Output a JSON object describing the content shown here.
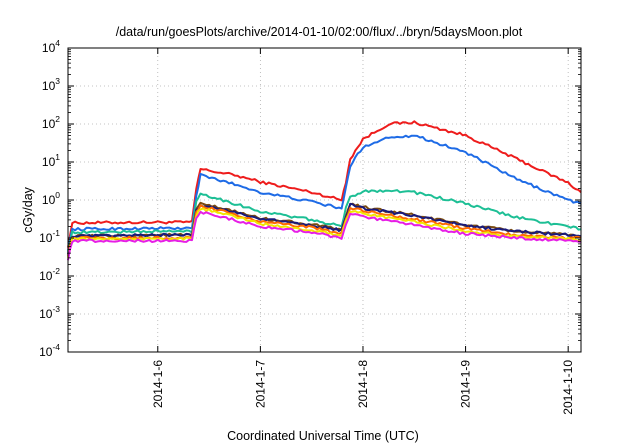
{
  "chart_data": {
    "type": "line",
    "title": "/data/run/goesPlots/archive/2014-01-10/02:00/flux/../bryn/5daysMoon.plot",
    "xlabel": "Coordinated Universal Time (UTC)",
    "ylabel": "cGy/day",
    "yscale": "log",
    "ylim": [
      0.0001,
      10000
    ],
    "xlim": [
      "2014-01-05 03:00",
      "2014-01-10 03:00"
    ],
    "grid": true,
    "x_ticks": [
      "2014-1-6",
      "2014-1-7",
      "2014-1-8",
      "2014-1-9",
      "2014-1-10"
    ],
    "y_ticks": [
      {
        "base": "10",
        "exp": "-4",
        "value": 0.0001
      },
      {
        "base": "10",
        "exp": "-3",
        "value": 0.001
      },
      {
        "base": "10",
        "exp": "-2",
        "value": 0.01
      },
      {
        "base": "10",
        "exp": "-1",
        "value": 0.1
      },
      {
        "base": "10",
        "exp": "0",
        "value": 1
      },
      {
        "base": "10",
        "exp": "1",
        "value": 10
      },
      {
        "base": "10",
        "exp": "2",
        "value": 100
      },
      {
        "base": "10",
        "exp": "3",
        "value": 1000
      },
      {
        "base": "10",
        "exp": "4",
        "value": 10000
      }
    ],
    "x_dates": [
      "2014-01-05 03:00",
      "2014-01-05 04:00",
      "2014-01-06 00:00",
      "2014-01-06 08:00",
      "2014-01-06 09:00",
      "2014-01-06 10:00",
      "2014-01-06 18:00",
      "2014-01-07 00:00",
      "2014-01-07 12:00",
      "2014-01-07 19:00",
      "2014-01-07 20:00",
      "2014-01-07 21:00",
      "2014-01-08 00:00",
      "2014-01-08 06:00",
      "2014-01-08 12:00",
      "2014-01-09 00:00",
      "2014-01-09 12:00",
      "2014-01-10 00:00",
      "2014-01-10 03:00"
    ],
    "series": [
      {
        "color": "#ee1c1c",
        "values": [
          0.06,
          0.25,
          0.26,
          0.26,
          2.0,
          6.5,
          4.5,
          3.0,
          1.6,
          1.0,
          3.0,
          12,
          40,
          100,
          110,
          50,
          12,
          2.8,
          1.6
        ]
      },
      {
        "color": "#1e6be6",
        "values": [
          0.05,
          0.17,
          0.18,
          0.18,
          1.3,
          4.5,
          2.6,
          1.6,
          0.9,
          0.6,
          2.0,
          8,
          25,
          45,
          50,
          18,
          3.5,
          1.0,
          0.8
        ]
      },
      {
        "color": "#1dbf95",
        "values": [
          0.045,
          0.14,
          0.15,
          0.15,
          0.9,
          1.5,
          0.8,
          0.5,
          0.3,
          0.2,
          0.6,
          1.2,
          1.7,
          1.8,
          1.6,
          0.8,
          0.35,
          0.2,
          0.17
        ]
      },
      {
        "color": "#7a4a10",
        "values": [
          0.04,
          0.11,
          0.12,
          0.12,
          0.55,
          0.8,
          0.5,
          0.33,
          0.23,
          0.16,
          0.35,
          0.8,
          0.65,
          0.5,
          0.4,
          0.22,
          0.15,
          0.12,
          0.11
        ]
      },
      {
        "color": "#1a1a7a",
        "values": [
          0.04,
          0.11,
          0.12,
          0.12,
          0.52,
          0.75,
          0.48,
          0.32,
          0.22,
          0.16,
          0.34,
          0.75,
          0.6,
          0.48,
          0.38,
          0.21,
          0.15,
          0.12,
          0.11
        ]
      },
      {
        "color": "#ff6a00",
        "values": [
          0.035,
          0.1,
          0.1,
          0.1,
          0.45,
          0.7,
          0.42,
          0.27,
          0.19,
          0.13,
          0.3,
          0.62,
          0.52,
          0.4,
          0.31,
          0.18,
          0.12,
          0.1,
          0.1
        ]
      },
      {
        "color": "#f2e600",
        "values": [
          0.032,
          0.095,
          0.095,
          0.095,
          0.4,
          0.6,
          0.37,
          0.24,
          0.16,
          0.12,
          0.27,
          0.52,
          0.44,
          0.34,
          0.27,
          0.15,
          0.11,
          0.095,
          0.09
        ]
      },
      {
        "color": "#e61ee6",
        "values": [
          0.028,
          0.085,
          0.085,
          0.085,
          0.35,
          0.48,
          0.3,
          0.2,
          0.14,
          0.1,
          0.22,
          0.42,
          0.36,
          0.28,
          0.22,
          0.13,
          0.1,
          0.085,
          0.08
        ]
      }
    ]
  }
}
